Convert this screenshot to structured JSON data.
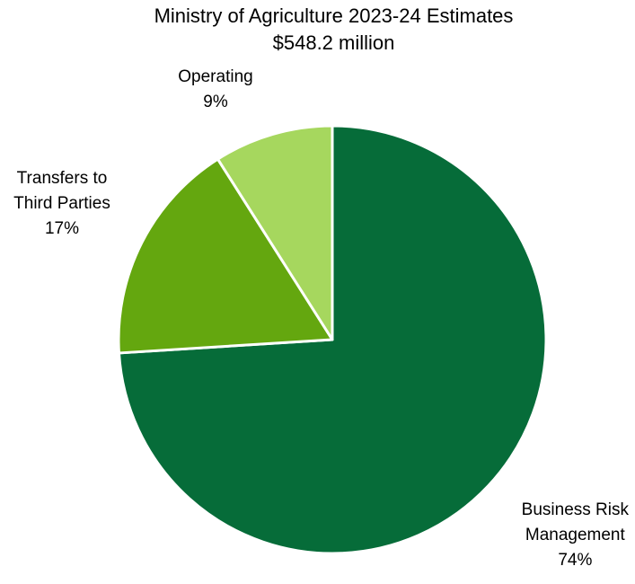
{
  "chart_data": {
    "type": "pie",
    "title": "Ministry of Agriculture 2023-24 Estimates",
    "subtitle": "$548.2 million",
    "slices": [
      {
        "label_lines": [
          "Business Risk",
          "Management"
        ],
        "percent_label": "74%",
        "value": 74,
        "color": "#066C39"
      },
      {
        "label_lines": [
          "Transfers to",
          "Third Parties"
        ],
        "percent_label": "17%",
        "value": 17,
        "color": "#64A70F"
      },
      {
        "label_lines": [
          "Operating"
        ],
        "percent_label": "9%",
        "value": 9,
        "color": "#A6D75E"
      }
    ],
    "slice_border_color": "#ffffff",
    "start": "12 o'clock",
    "direction": "clockwise"
  }
}
